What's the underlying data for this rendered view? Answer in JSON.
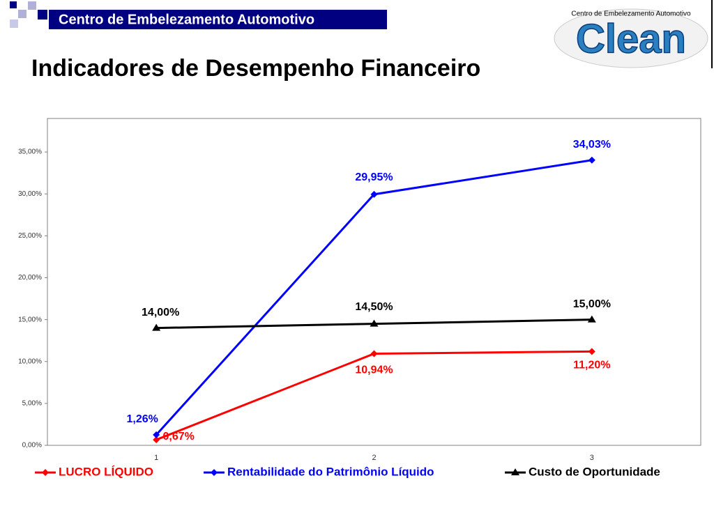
{
  "header": {
    "company": "Centro de Embelezamento Automotivo",
    "title": "Indicadores de Desempenho Financeiro",
    "logo_text": "Clean",
    "logo_tagline": "Centro de Embelezamento Automotivo"
  },
  "chart_data": {
    "type": "line",
    "categories": [
      "1",
      "2",
      "3"
    ],
    "ylim": [
      0,
      39
    ],
    "yticks": [
      {
        "value": 0,
        "label": "0,00%"
      },
      {
        "value": 5,
        "label": "5,00%"
      },
      {
        "value": 10,
        "label": "10,00%"
      },
      {
        "value": 15,
        "label": "15,00%"
      },
      {
        "value": 20,
        "label": "20,00%"
      },
      {
        "value": 25,
        "label": "25,00%"
      },
      {
        "value": 30,
        "label": "30,00%"
      },
      {
        "value": 35,
        "label": "35,00%"
      }
    ],
    "legend": "bottom",
    "series": [
      {
        "name": "LUCRO LÍQUIDO",
        "color": "#ff0000",
        "marker": "diamond",
        "values": [
          0.67,
          10.94,
          11.2
        ],
        "value_labels": [
          "0,67%",
          "10,94%",
          "11,20%"
        ]
      },
      {
        "name": "Rentabilidade do Patrimônio Líquido",
        "color": "#0000ff",
        "marker": "diamond",
        "values": [
          1.26,
          29.95,
          34.03
        ],
        "value_labels": [
          "1,26%",
          "29,95%",
          "34,03%"
        ]
      },
      {
        "name": "Custo de Oportunidade",
        "color": "#000000",
        "marker": "triangle",
        "values": [
          14.0,
          14.5,
          15.0
        ],
        "value_labels": [
          "14,00%",
          "14,50%",
          "15,00%"
        ]
      }
    ]
  }
}
